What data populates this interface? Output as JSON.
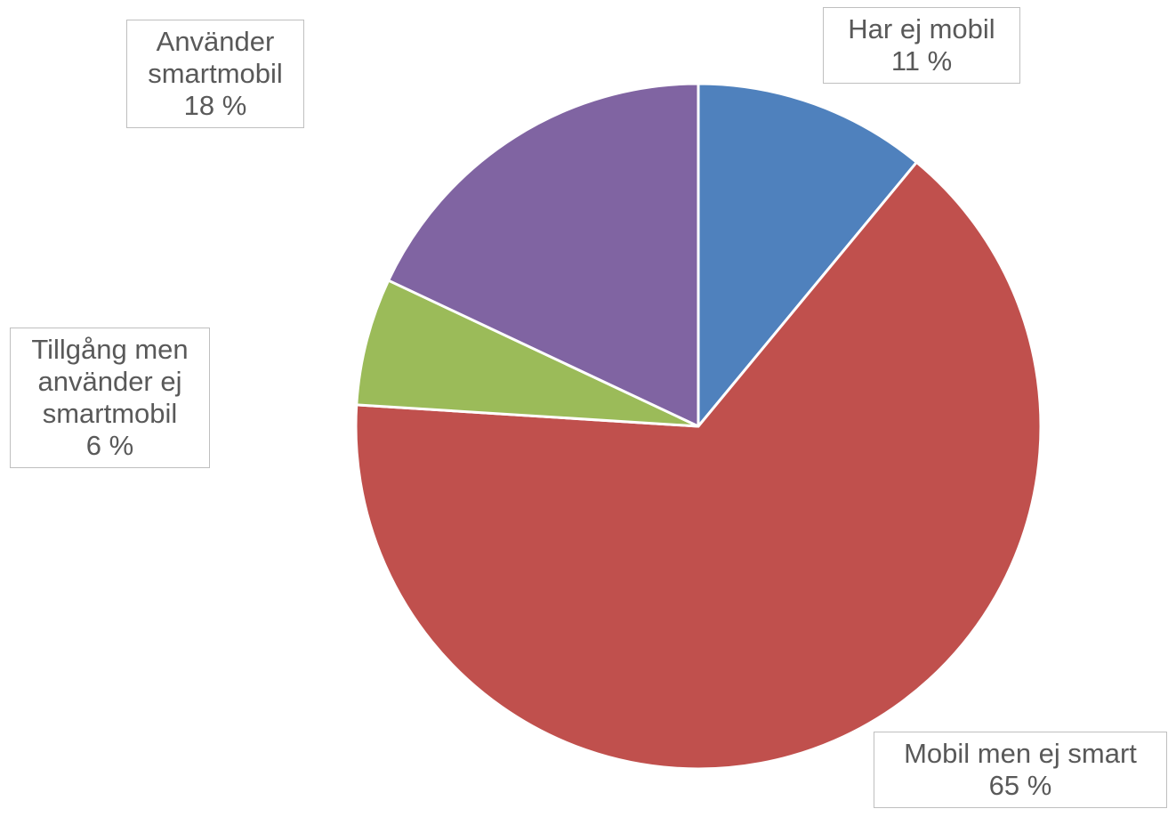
{
  "chart_data": {
    "type": "pie",
    "categories": [
      "Har ej mobil",
      "Mobil men ej smart",
      "Tillgång men använder ej smartmobil",
      "Använder smartmobil"
    ],
    "values": [
      11,
      65,
      6,
      18
    ],
    "value_labels": [
      "11 %",
      "65 %",
      "6 %",
      "18 %"
    ],
    "colors": [
      "#4f81bd",
      "#c0504d",
      "#9bbb59",
      "#8064a2"
    ]
  }
}
